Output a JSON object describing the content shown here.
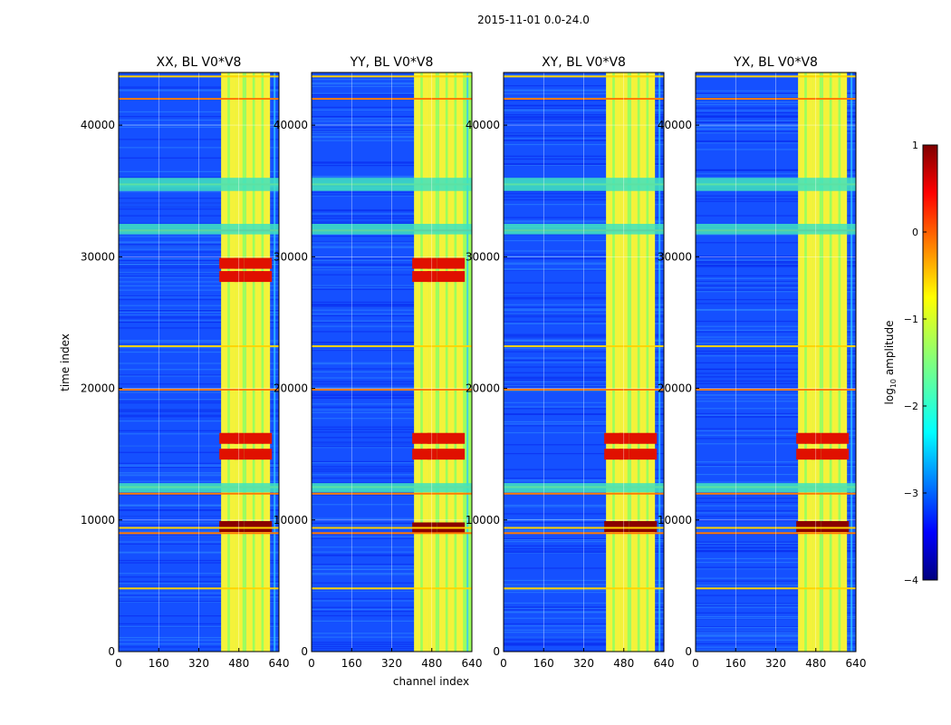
{
  "figure": {
    "suptitle": "2015-11-01 0.0-24.0",
    "xlabel": "channel index",
    "ylabel": "time index"
  },
  "chart_data": [
    {
      "type": "heatmap",
      "title": "XX, BL V0*V8",
      "xlabel": "",
      "ylabel": "time index",
      "xlim": [
        0,
        640
      ],
      "ylim": [
        0,
        44000
      ],
      "xticks": [
        0,
        160,
        320,
        480,
        640
      ],
      "yticks": [
        0,
        10000,
        20000,
        30000,
        40000
      ],
      "colorscale": "jet",
      "zlim": [
        -4,
        1
      ],
      "features": {
        "hot_band_channels": [
          410,
          600
        ],
        "bright_channel_columns": [
          420,
          455,
          480,
          520,
          555,
          590
        ],
        "strong_rfi_time_rows": [
          9500,
          15000,
          16200,
          28500,
          29500
        ],
        "flagged_time_rows": [
          4800,
          9000,
          9400,
          12000,
          12500,
          19900,
          23200,
          32000,
          35500,
          42000,
          43700
        ]
      }
    },
    {
      "type": "heatmap",
      "title": "YY, BL V0*V8",
      "xlabel": "channel index",
      "ylabel": "",
      "xlim": [
        0,
        640
      ],
      "ylim": [
        0,
        44000
      ],
      "xticks": [
        0,
        160,
        320,
        480,
        640
      ],
      "yticks": [
        0,
        10000,
        20000,
        30000,
        40000
      ],
      "colorscale": "jet",
      "zlim": [
        -4,
        1
      ],
      "features": {
        "hot_band_channels": [
          410,
          640
        ],
        "bright_channel_columns": [
          420,
          455,
          480,
          520,
          555,
          590
        ],
        "strong_rfi_time_rows": [
          9400,
          15000,
          16200,
          28500,
          29500
        ],
        "flagged_time_rows": [
          4800,
          9000,
          9400,
          12000,
          12500,
          19900,
          23200,
          32000,
          35500,
          42000,
          43700
        ]
      }
    },
    {
      "type": "heatmap",
      "title": "XY, BL V0*V8",
      "xlabel": "",
      "ylabel": "",
      "xlim": [
        0,
        640
      ],
      "ylim": [
        0,
        44000
      ],
      "xticks": [
        0,
        160,
        320,
        480,
        640
      ],
      "yticks": [
        0,
        10000,
        20000,
        30000,
        40000
      ],
      "colorscale": "jet",
      "zlim": [
        -4,
        1
      ],
      "features": {
        "hot_band_channels": [
          410,
          600
        ],
        "bright_channel_columns": [
          420,
          455,
          480,
          520,
          555,
          590
        ],
        "strong_rfi_time_rows": [
          9500,
          15000,
          16200
        ],
        "flagged_time_rows": [
          4800,
          9000,
          9400,
          12000,
          12500,
          19900,
          23200,
          32000,
          35500,
          42000,
          43700
        ]
      }
    },
    {
      "type": "heatmap",
      "title": "YX, BL V0*V8",
      "xlabel": "",
      "ylabel": "",
      "xlim": [
        0,
        640
      ],
      "ylim": [
        0,
        44000
      ],
      "xticks": [
        0,
        160,
        320,
        480,
        640
      ],
      "yticks": [
        0,
        10000,
        20000,
        30000,
        40000
      ],
      "colorscale": "jet",
      "zlim": [
        -4,
        1
      ],
      "features": {
        "hot_band_channels": [
          410,
          600
        ],
        "bright_channel_columns": [
          420,
          455,
          480,
          520,
          555,
          590
        ],
        "strong_rfi_time_rows": [
          9500,
          15000,
          16200
        ],
        "flagged_time_rows": [
          4800,
          9000,
          9400,
          12000,
          12500,
          19900,
          23200,
          32000,
          35500,
          42000,
          43700
        ]
      }
    }
  ],
  "colorbar": {
    "label_prefix": "log",
    "label_sub": "10",
    "label_suffix": " amplitude",
    "ticks": [
      1,
      0,
      -1,
      -2,
      -3,
      -4
    ],
    "tick_labels": [
      "1",
      "0",
      "−1",
      "−2",
      "−3",
      "−4"
    ],
    "range": [
      -4,
      1
    ],
    "colors": [
      "#00007f",
      "#0000ff",
      "#007fff",
      "#00ffff",
      "#7fff7f",
      "#ffff00",
      "#ff7f00",
      "#ff0000",
      "#7f0000"
    ]
  }
}
